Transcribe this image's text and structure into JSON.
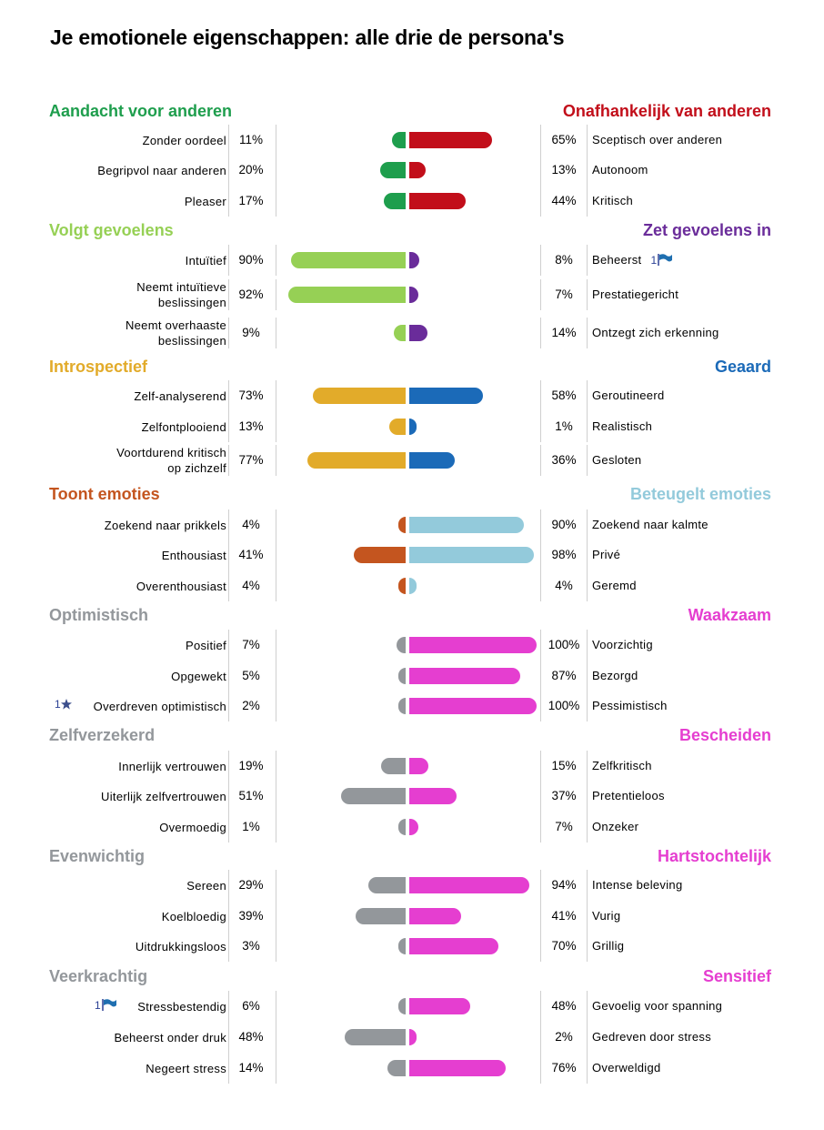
{
  "title": "Je emotionele eigenschappen: alle drie de persona's",
  "chart_data": {
    "type": "bar",
    "orientation": "diverging-horizontal",
    "sections": [
      {
        "left_heading": "Aandacht voor anderen",
        "right_heading": "Onafhankelijk van anderen",
        "left_color": "#1e9e4d",
        "right_color": "#c20e1a",
        "rows": [
          {
            "left_label": "Zonder oordeel",
            "left_value": 11,
            "left_text": "11%",
            "right_value": 65,
            "right_text": "65%",
            "right_label": "Sceptisch over anderen"
          },
          {
            "left_label": "Begripvol naar anderen",
            "left_value": 20,
            "left_text": "20%",
            "right_value": 13,
            "right_text": "13%",
            "right_label": "Autonoom"
          },
          {
            "left_label": "Pleaser",
            "left_value": 17,
            "left_text": "17%",
            "right_value": 44,
            "right_text": "44%",
            "right_label": "Kritisch"
          }
        ]
      },
      {
        "left_heading": "Volgt gevoelens",
        "right_heading": "Zet gevoelens in",
        "left_color": "#96d055",
        "right_color": "#6a2c9a",
        "rows": [
          {
            "left_label": "Intuïtief",
            "left_value": 90,
            "left_text": "90%",
            "right_value": 8,
            "right_text": "8%",
            "right_label": "Beheerst",
            "right_marker": "1"
          },
          {
            "left_label": "Neemt intuïtieve beslissingen",
            "left_value": 92,
            "left_text": "92%",
            "right_value": 7,
            "right_text": "7%",
            "right_label": "Prestatiegericht"
          },
          {
            "left_label": "Neemt overhaaste beslissingen",
            "left_value": 9,
            "left_text": "9%",
            "right_value": 14,
            "right_text": "14%",
            "right_label": "Ontzegt zich erkenning"
          }
        ]
      },
      {
        "left_heading": "Introspectief",
        "right_heading": "Geaard",
        "left_color": "#e2ab2a",
        "right_color": "#1b6ab8",
        "rows": [
          {
            "left_label": "Zelf-analyserend",
            "left_value": 73,
            "left_text": "73%",
            "right_value": 58,
            "right_text": "58%",
            "right_label": "Geroutineerd"
          },
          {
            "left_label": "Zelfontplooiend",
            "left_value": 13,
            "left_text": "13%",
            "right_value": 1,
            "right_text": "1%",
            "right_label": "Realistisch"
          },
          {
            "left_label": "Voortdurend kritisch op zichzelf",
            "left_value": 77,
            "left_text": "77%",
            "right_value": 36,
            "right_text": "36%",
            "right_label": "Gesloten"
          }
        ]
      },
      {
        "left_heading": "Toont emoties",
        "right_heading": "Beteugelt emoties",
        "left_color": "#c4551f",
        "right_color": "#93cadb",
        "rows": [
          {
            "left_label": "Zoekend naar prikkels",
            "left_value": 4,
            "left_text": "4%",
            "right_value": 90,
            "right_text": "90%",
            "right_label": "Zoekend naar kalmte"
          },
          {
            "left_label": "Enthousiast",
            "left_value": 41,
            "left_text": "41%",
            "right_value": 98,
            "right_text": "98%",
            "right_label": "Privé"
          },
          {
            "left_label": "Overenthousiast",
            "left_value": 4,
            "left_text": "4%",
            "right_value": 4,
            "right_text": "4%",
            "right_label": "Geremd"
          }
        ]
      },
      {
        "left_heading": "Optimistisch",
        "right_heading": "Waakzaam",
        "left_color": "#93979b",
        "right_color": "#e53ed0",
        "rows": [
          {
            "left_label": "Positief",
            "left_value": 7,
            "left_text": "7%",
            "right_value": 100,
            "right_text": "100%",
            "right_label": "Voorzichtig"
          },
          {
            "left_label": "Opgewekt",
            "left_value": 5,
            "left_text": "5%",
            "right_value": 87,
            "right_text": "87%",
            "right_label": "Bezorgd"
          },
          {
            "left_label": "Overdreven optimistisch",
            "left_value": 2,
            "left_text": "2%",
            "right_value": 100,
            "right_text": "100%",
            "right_label": "Pessimistisch",
            "left_marker": "1"
          }
        ]
      },
      {
        "left_heading": "Zelfverzekerd",
        "right_heading": "Bescheiden",
        "left_color": "#93979b",
        "right_color": "#e53ed0",
        "rows": [
          {
            "left_label": "Innerlijk vertrouwen",
            "left_value": 19,
            "left_text": "19%",
            "right_value": 15,
            "right_text": "15%",
            "right_label": "Zelfkritisch"
          },
          {
            "left_label": "Uiterlijk zelfvertrouwen",
            "left_value": 51,
            "left_text": "51%",
            "right_value": 37,
            "right_text": "37%",
            "right_label": "Pretentieloos"
          },
          {
            "left_label": "Overmoedig",
            "left_value": 1,
            "left_text": "1%",
            "right_value": 7,
            "right_text": "7%",
            "right_label": "Onzeker"
          }
        ]
      },
      {
        "left_heading": "Evenwichtig",
        "right_heading": "Hartstochtelijk",
        "left_color": "#93979b",
        "right_color": "#e53ed0",
        "rows": [
          {
            "left_label": "Sereen",
            "left_value": 29,
            "left_text": "29%",
            "right_value": 94,
            "right_text": "94%",
            "right_label": "Intense beleving"
          },
          {
            "left_label": "Koelbloedig",
            "left_value": 39,
            "left_text": "39%",
            "right_value": 41,
            "right_text": "41%",
            "right_label": "Vurig"
          },
          {
            "left_label": "Uitdrukkingsloos",
            "left_value": 3,
            "left_text": "3%",
            "right_value": 70,
            "right_text": "70%",
            "right_label": "Grillig"
          }
        ]
      },
      {
        "left_heading": "Veerkrachtig",
        "right_heading": "Sensitief",
        "left_color": "#93979b",
        "right_color": "#e53ed0",
        "rows": [
          {
            "left_label": "Stressbestendig",
            "left_value": 6,
            "left_text": "6%",
            "right_value": 48,
            "right_text": "48%",
            "right_label": "Gevoelig voor spanning",
            "left_marker": "1"
          },
          {
            "left_label": "Beheerst onder druk",
            "left_value": 48,
            "left_text": "48%",
            "right_value": 2,
            "right_text": "2%",
            "right_label": "Gedreven door stress"
          },
          {
            "left_label": "Negeert stress",
            "left_value": 14,
            "left_text": "14%",
            "right_value": 76,
            "right_text": "76%",
            "right_label": "Overweldigd"
          }
        ]
      }
    ]
  },
  "icons": {
    "flag": "flag-icon",
    "star": "star-icon"
  }
}
